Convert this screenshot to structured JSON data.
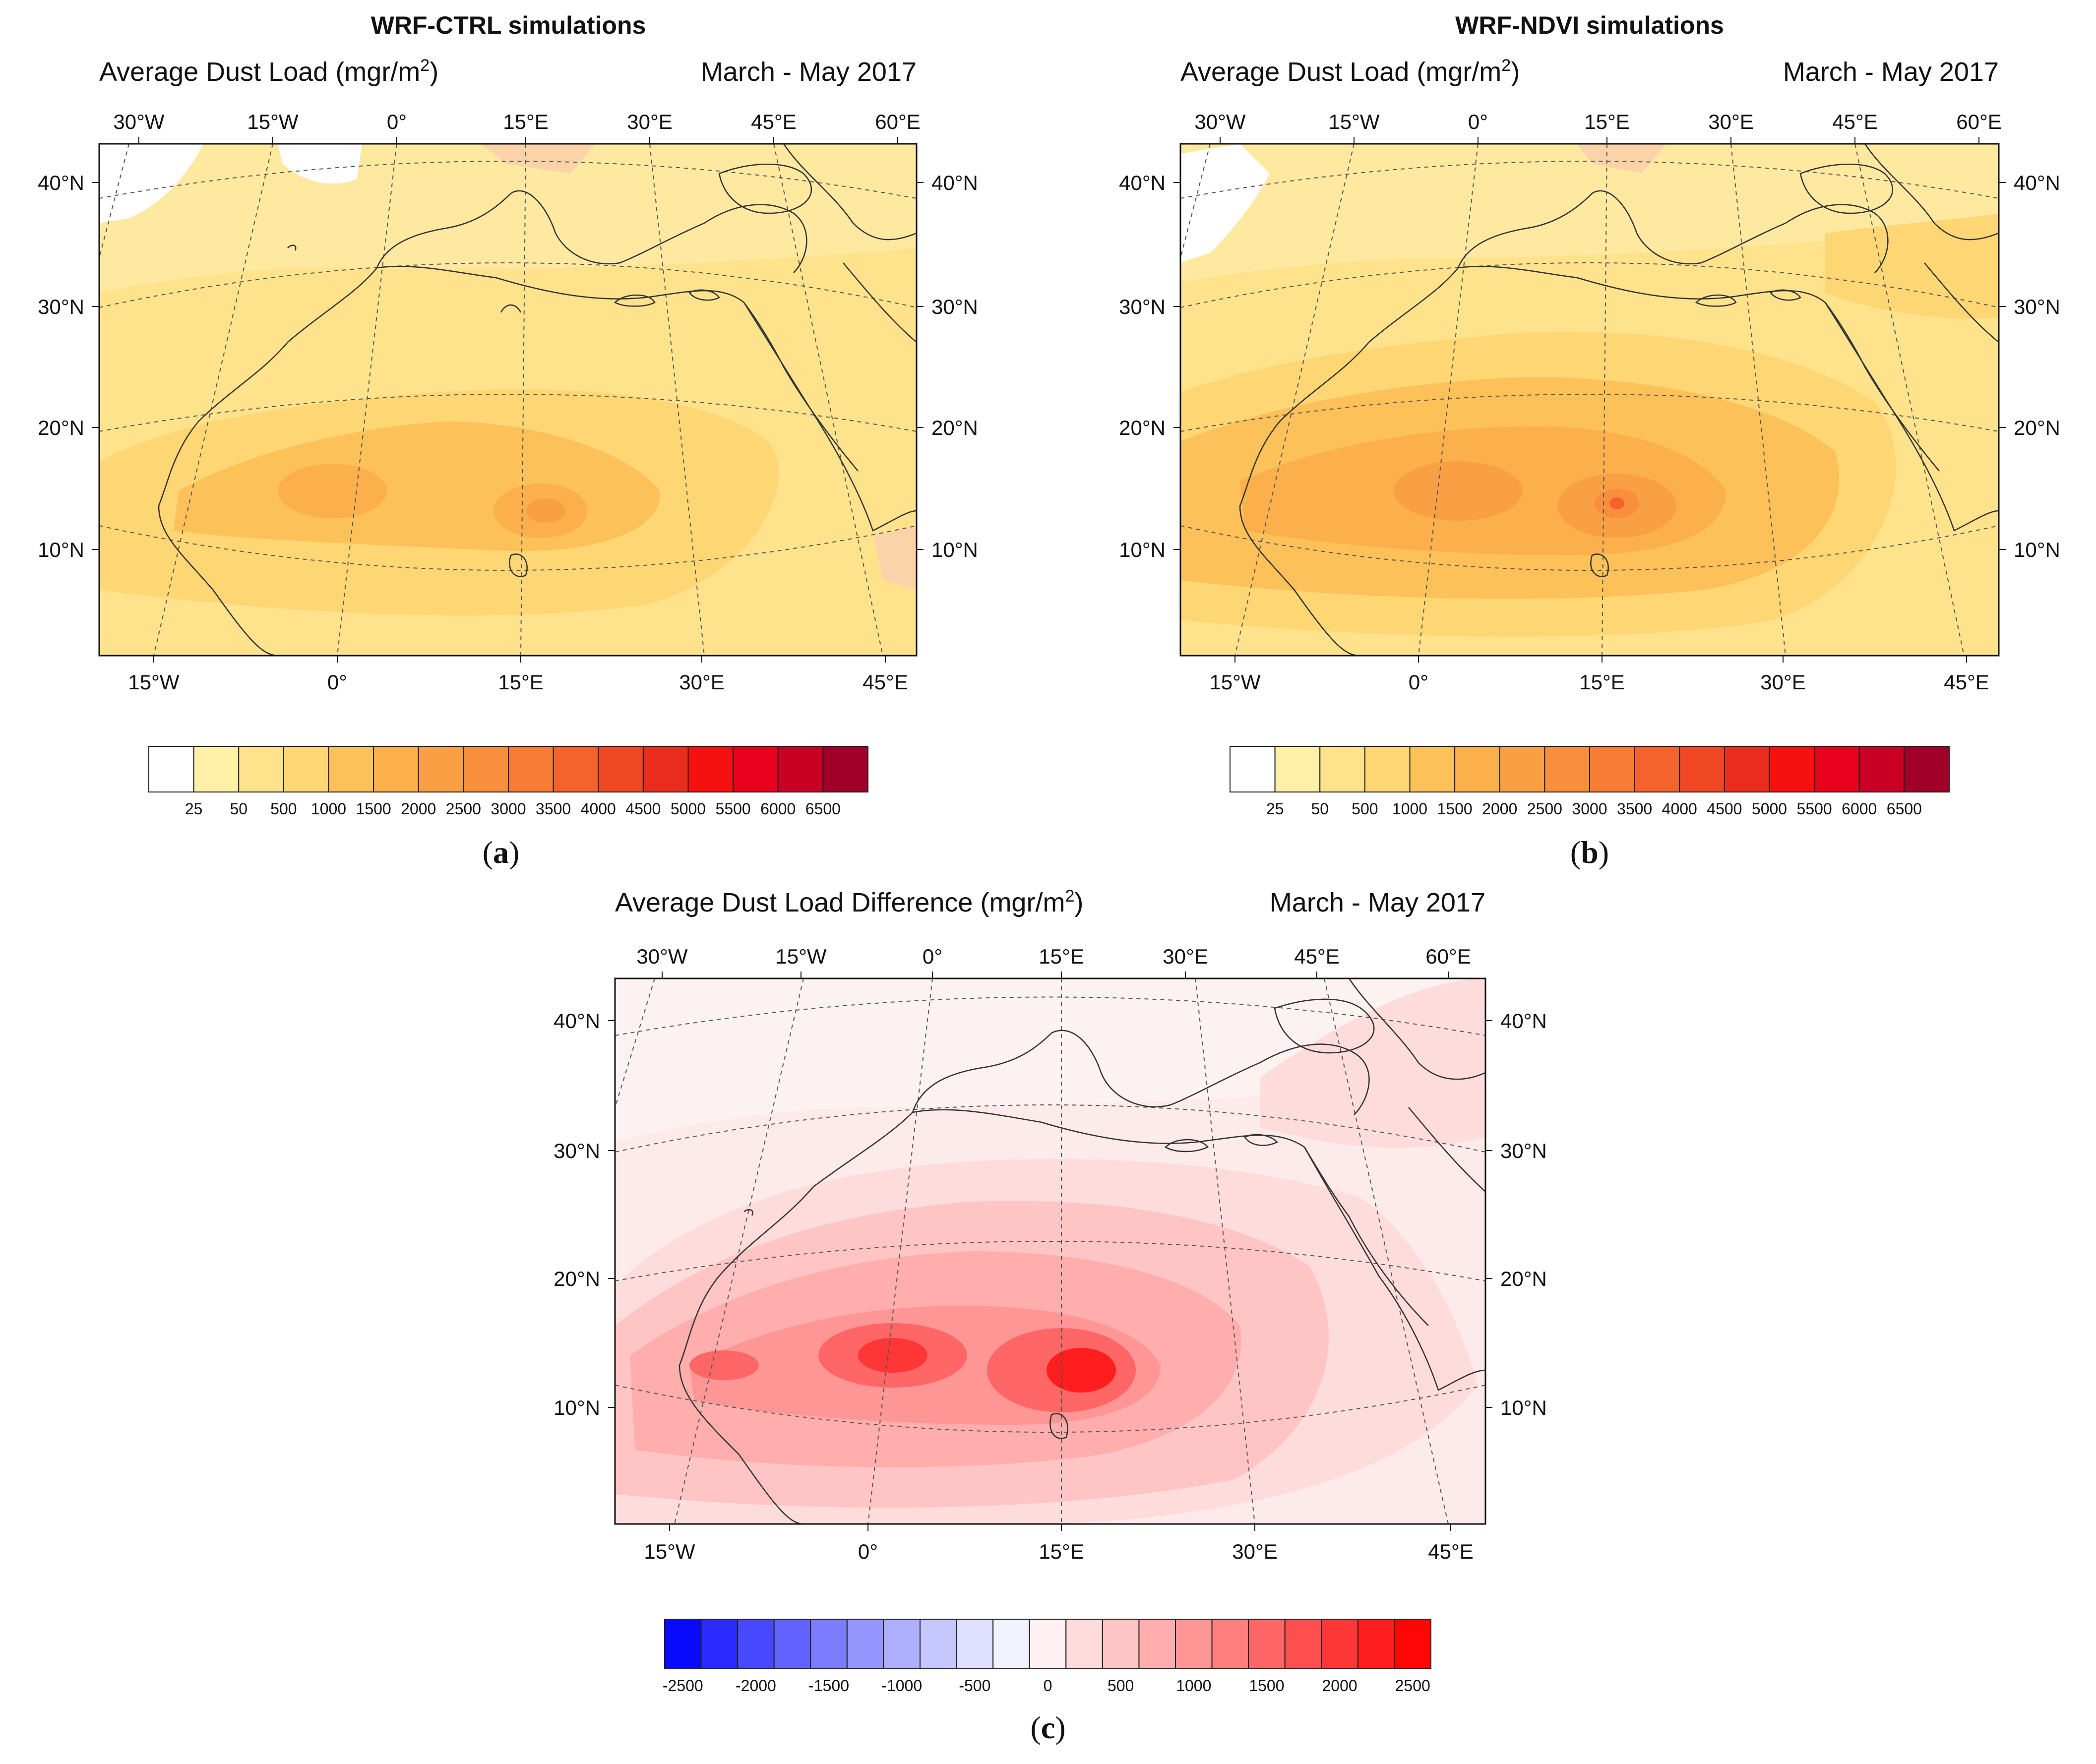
{
  "panels": [
    {
      "id": "a",
      "title": "WRF-CTRL simulations",
      "subtitle_left": "Average Dust Load (mgr/m",
      "subtitle_sup": "2",
      "subtitle_close": ")",
      "subtitle_right": "March - May 2017",
      "label": "a",
      "scheme": "load"
    },
    {
      "id": "b",
      "title": "WRF-NDVI simulations",
      "subtitle_left": "Average Dust Load (mgr/m",
      "subtitle_sup": "2",
      "subtitle_close": ")",
      "subtitle_right": "March - May 2017",
      "label": "b",
      "scheme": "load"
    },
    {
      "id": "c",
      "title": "",
      "subtitle_left": "Average Dust Load Difference (mgr/m",
      "subtitle_sup": "2",
      "subtitle_close": ")",
      "subtitle_right": "March - May 2017",
      "label": "c",
      "scheme": "diff"
    }
  ],
  "axes": {
    "top_lon_labels": [
      "30°W",
      "15°W",
      "0°",
      "15°E",
      "30°E",
      "45°E",
      "60°E"
    ],
    "bottom_lon_labels": [
      "15°W",
      "0°",
      "15°E",
      "30°E",
      "45°E"
    ],
    "lat_labels": [
      "40°N",
      "30°N",
      "20°N",
      "10°N"
    ]
  },
  "colorbars": {
    "load": {
      "labels": [
        "25",
        "50",
        "500",
        "1000",
        "1500",
        "2000",
        "2500",
        "3000",
        "3500",
        "4000",
        "4500",
        "5000",
        "5500",
        "6000",
        "6500"
      ],
      "colors": [
        "#ffffff",
        "#fff0a8",
        "#ffe38c",
        "#fed674",
        "#fdc15a",
        "#fcb04c",
        "#faa044",
        "#f98f3c",
        "#f77c34",
        "#f4632c",
        "#f04824",
        "#ea2d1c",
        "#f71010",
        "#e8001c",
        "#c90024",
        "#a00028"
      ]
    },
    "diff": {
      "labels": [
        "-2500",
        "-2000",
        "-1500",
        "-1000",
        "-500",
        "0",
        "500",
        "1000",
        "1500",
        "2000",
        "2500"
      ],
      "colors": [
        "#0a0aff",
        "#2a2aff",
        "#4848ff",
        "#6262ff",
        "#7c7cff",
        "#9696ff",
        "#afafff",
        "#c7c7ff",
        "#dfdfff",
        "#f1f1ff",
        "#fff1f1",
        "#ffdcdc",
        "#ffc5c5",
        "#ffadad",
        "#ff9696",
        "#ff7e7e",
        "#ff6666",
        "#ff4e4e",
        "#ff3636",
        "#ff1e1e",
        "#ff0606"
      ]
    }
  },
  "fields": {
    "a": {
      "background": "#ffe38c",
      "north": "#ffe9a0",
      "core": "#fdc15a",
      "peak": "#f98f3c"
    },
    "b": {
      "background": "#ffe38c",
      "north": "#ffe9a0",
      "core": "#fcb04c",
      "peak": "#f4632c"
    },
    "c": {
      "background": "#fdeaea",
      "north": "#fdf2f2",
      "core": "#ff7e7e",
      "peak": "#ff1e1e"
    }
  }
}
